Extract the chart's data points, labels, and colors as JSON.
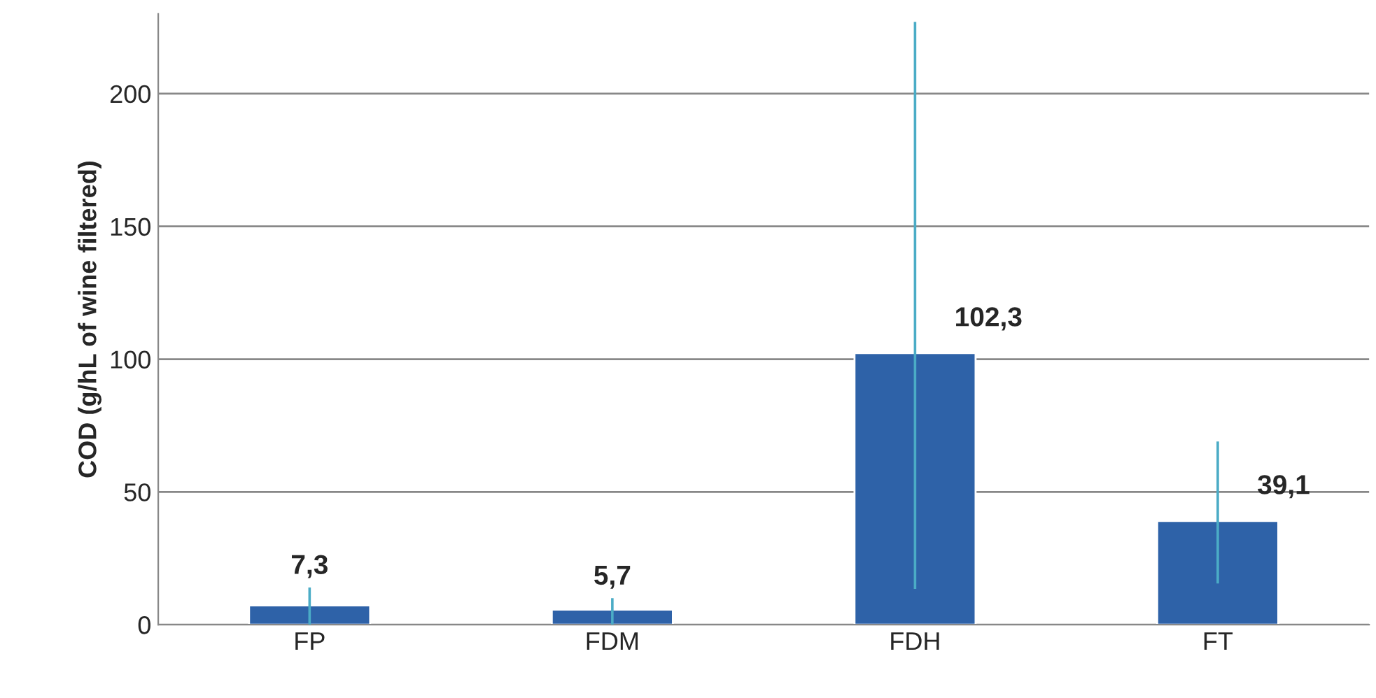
{
  "chart_data": {
    "type": "bar",
    "ylabel": "COD (g/hL of wine filtered)",
    "categories": [
      "FP",
      "FDM",
      "FDH",
      "FT"
    ],
    "values": [
      7.3,
      5.7,
      102.3,
      39.1
    ],
    "value_labels": [
      "7,3",
      "5,7",
      "102,3",
      "39,1"
    ],
    "errors": [
      [
        0,
        14
      ],
      [
        0,
        10
      ],
      [
        13.5,
        227
      ],
      [
        15.5,
        69
      ]
    ],
    "color": "#2e62a8",
    "ylim": [
      0,
      230
    ],
    "yticks": [
      0,
      50,
      100,
      150,
      200
    ],
    "grid": "y"
  }
}
